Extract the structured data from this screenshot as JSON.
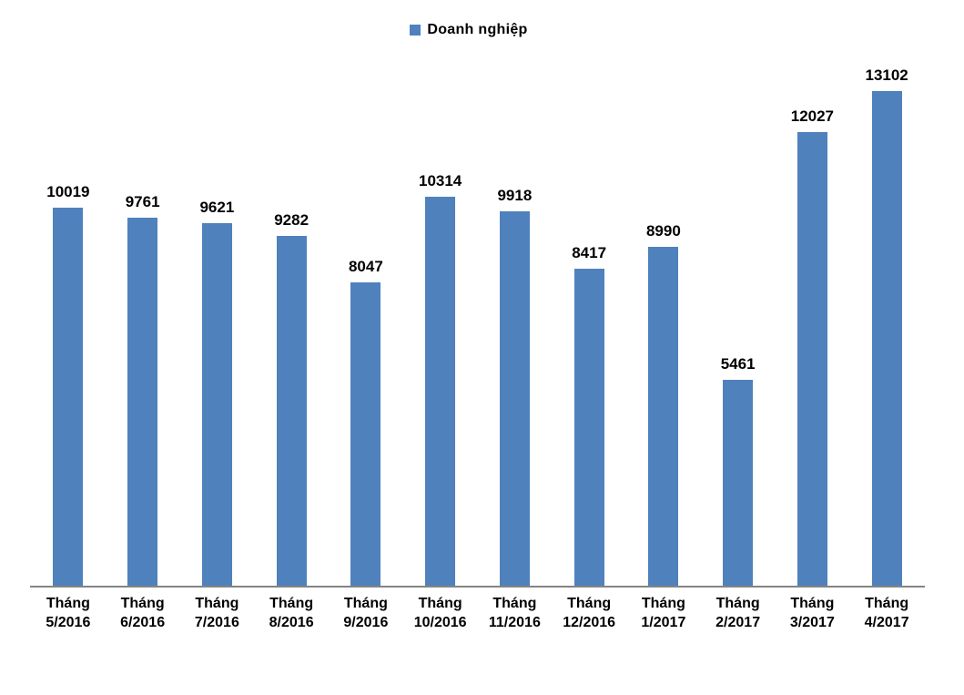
{
  "chart_data": {
    "type": "bar",
    "title": "",
    "legend_position": "top-center",
    "categories": [
      [
        "Tháng",
        "5/2016"
      ],
      [
        "Tháng",
        "6/2016"
      ],
      [
        "Tháng",
        "7/2016"
      ],
      [
        "Tháng",
        "8/2016"
      ],
      [
        "Tháng",
        "9/2016"
      ],
      [
        "Tháng",
        "10/2016"
      ],
      [
        "Tháng",
        "11/2016"
      ],
      [
        "Tháng",
        "12/2016"
      ],
      [
        "Tháng",
        "1/2017"
      ],
      [
        "Tháng",
        "2/2017"
      ],
      [
        "Tháng",
        "3/2017"
      ],
      [
        "Tháng",
        "4/2017"
      ]
    ],
    "series": [
      {
        "name": "Doanh nghiệp",
        "color": "#4F81BD",
        "values": [
          10019,
          9761,
          9621,
          9282,
          8047,
          10314,
          9918,
          8417,
          8990,
          5461,
          12027,
          13102
        ]
      }
    ],
    "data_labels": true,
    "gridlines": false,
    "ylim": [
      0,
      14000
    ],
    "axis_line_color": "#848484",
    "background_color": "#FFFFFF",
    "text_color": "#000000"
  }
}
